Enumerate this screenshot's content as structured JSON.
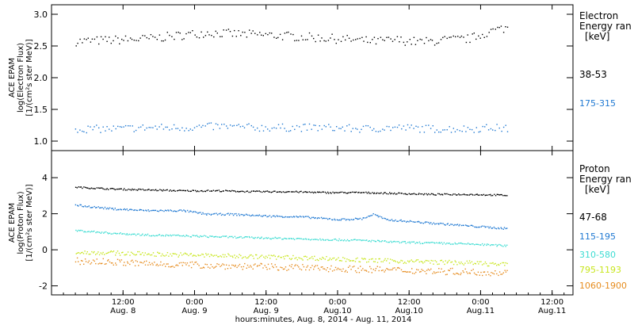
{
  "x_axis": {
    "ticks": [
      {
        "t": 12,
        "time": "12:00",
        "date": "Aug. 8"
      },
      {
        "t": 24,
        "time": "0:00",
        "date": "Aug. 9"
      },
      {
        "t": 36,
        "time": "12:00",
        "date": "Aug. 9"
      },
      {
        "t": 48,
        "time": "0:00",
        "date": "Aug.10"
      },
      {
        "t": 60,
        "time": "12:00",
        "date": "Aug.10"
      },
      {
        "t": 72,
        "time": "0:00",
        "date": "Aug.11"
      },
      {
        "t": 84,
        "time": "12:00",
        "date": "Aug.11"
      }
    ],
    "title": "hours:minutes, Aug.  8, 2014 - Aug. 11, 2014"
  },
  "chart_data": [
    {
      "type": "scatter",
      "panel": "electron",
      "ylabel_lines": [
        "ACE EPAM",
        "log(Electron Flux)",
        "[1/(cm²s ster MeV)]"
      ],
      "ylim": [
        0.85,
        3.15
      ],
      "yticks": [
        1.0,
        1.5,
        2.0,
        2.5,
        3.0
      ],
      "ytick_labels": [
        "1.0",
        "1.5",
        "2.0",
        "2.5",
        "3.0"
      ],
      "legend_title": [
        "Electron",
        "Energy ran",
        "[keV]"
      ],
      "x_unit": "hours since Aug. 8, 2014 00:00",
      "series": [
        {
          "name": "38-53",
          "color": "#000000",
          "points": [
            [
              4,
              2.58
            ],
            [
              10,
              2.6
            ],
            [
              16,
              2.62
            ],
            [
              22,
              2.68
            ],
            [
              26,
              2.72
            ],
            [
              30,
              2.7
            ],
            [
              36,
              2.68
            ],
            [
              42,
              2.65
            ],
            [
              48,
              2.62
            ],
            [
              54,
              2.58
            ],
            [
              58,
              2.6
            ],
            [
              62,
              2.57
            ],
            [
              66,
              2.6
            ],
            [
              70,
              2.62
            ],
            [
              74,
              2.75
            ],
            [
              76.5,
              2.8
            ]
          ]
        },
        {
          "name": "175-315",
          "color": "#1e78d2",
          "points": [
            [
              4,
              1.2
            ],
            [
              10,
              1.2
            ],
            [
              16,
              1.22
            ],
            [
              22,
              1.22
            ],
            [
              28,
              1.24
            ],
            [
              34,
              1.22
            ],
            [
              40,
              1.22
            ],
            [
              46,
              1.22
            ],
            [
              52,
              1.2
            ],
            [
              58,
              1.22
            ],
            [
              64,
              1.2
            ],
            [
              70,
              1.2
            ],
            [
              74,
              1.22
            ],
            [
              76.5,
              1.2
            ]
          ]
        }
      ]
    },
    {
      "type": "scatter",
      "panel": "proton",
      "ylabel_lines": [
        "ACE EPAM",
        "log(Proton Flux)",
        "[1/(cm²s ster MeV)]"
      ],
      "ylim": [
        -2.5,
        5.5
      ],
      "yticks": [
        -2,
        0,
        2,
        4
      ],
      "ytick_labels": [
        "-2",
        "0",
        "2",
        "4"
      ],
      "legend_title": [
        "Proton",
        "Energy ran",
        "[keV]"
      ],
      "x_unit": "hours since Aug. 8, 2014 00:00",
      "series": [
        {
          "name": "47-68",
          "color": "#000000",
          "points": [
            [
              4,
              3.5
            ],
            [
              10,
              3.4
            ],
            [
              16,
              3.35
            ],
            [
              22,
              3.3
            ],
            [
              28,
              3.3
            ],
            [
              34,
              3.25
            ],
            [
              40,
              3.25
            ],
            [
              46,
              3.2
            ],
            [
              52,
              3.2
            ],
            [
              58,
              3.15
            ],
            [
              64,
              3.1
            ],
            [
              70,
              3.1
            ],
            [
              76.5,
              3.05
            ]
          ]
        },
        {
          "name": "115-195",
          "color": "#1e78d2",
          "points": [
            [
              4,
              2.5
            ],
            [
              10,
              2.3
            ],
            [
              16,
              2.2
            ],
            [
              22,
              2.2
            ],
            [
              26,
              2.0
            ],
            [
              30,
              2.0
            ],
            [
              36,
              1.9
            ],
            [
              42,
              1.85
            ],
            [
              48,
              1.7
            ],
            [
              52,
              1.75
            ],
            [
              54,
              2.0
            ],
            [
              56,
              1.7
            ],
            [
              60,
              1.6
            ],
            [
              64,
              1.5
            ],
            [
              70,
              1.35
            ],
            [
              76.5,
              1.2
            ]
          ]
        },
        {
          "name": "310-580",
          "color": "#3cdcd2",
          "points": [
            [
              4,
              1.1
            ],
            [
              10,
              0.95
            ],
            [
              16,
              0.85
            ],
            [
              22,
              0.8
            ],
            [
              28,
              0.75
            ],
            [
              34,
              0.7
            ],
            [
              40,
              0.65
            ],
            [
              46,
              0.6
            ],
            [
              52,
              0.55
            ],
            [
              58,
              0.45
            ],
            [
              64,
              0.4
            ],
            [
              70,
              0.35
            ],
            [
              76.5,
              0.25
            ]
          ]
        },
        {
          "name": "795-1193",
          "color": "#c8e61e",
          "points": [
            [
              4,
              -0.1
            ],
            [
              10,
              -0.15
            ],
            [
              16,
              -0.2
            ],
            [
              22,
              -0.25
            ],
            [
              28,
              -0.3
            ],
            [
              34,
              -0.35
            ],
            [
              40,
              -0.4
            ],
            [
              46,
              -0.45
            ],
            [
              52,
              -0.55
            ],
            [
              58,
              -0.6
            ],
            [
              64,
              -0.65
            ],
            [
              70,
              -0.7
            ],
            [
              76.5,
              -0.8
            ]
          ]
        },
        {
          "name": "1060-1900",
          "color": "#e68c1e",
          "points": [
            [
              4,
              -0.6
            ],
            [
              10,
              -0.65
            ],
            [
              16,
              -0.75
            ],
            [
              22,
              -0.8
            ],
            [
              28,
              -0.85
            ],
            [
              34,
              -0.9
            ],
            [
              40,
              -0.95
            ],
            [
              46,
              -1.0
            ],
            [
              52,
              -1.05
            ],
            [
              58,
              -1.1
            ],
            [
              64,
              -1.15
            ],
            [
              70,
              -1.2
            ],
            [
              76.5,
              -1.25
            ]
          ]
        }
      ]
    }
  ]
}
